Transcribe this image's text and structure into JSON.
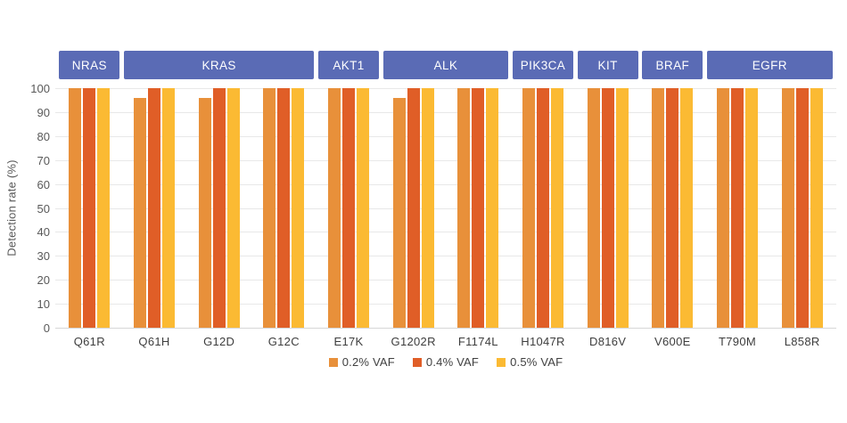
{
  "chart_data": {
    "type": "bar",
    "title": "",
    "xlabel": "",
    "ylabel": "Detection rate (%)",
    "ylim": [
      0,
      100
    ],
    "yticks": [
      0,
      10,
      20,
      30,
      40,
      50,
      60,
      70,
      80,
      90,
      100
    ],
    "grid": true,
    "legend_position": "bottom",
    "categories": [
      "Q61R",
      "Q61H",
      "G12D",
      "G12C",
      "E17K",
      "G1202R",
      "F1174L",
      "H1047R",
      "D816V",
      "V600E",
      "T790M",
      "L858R"
    ],
    "gene_groups": [
      {
        "label": "NRAS",
        "from": 0,
        "to": 0
      },
      {
        "label": "KRAS",
        "from": 1,
        "to": 3
      },
      {
        "label": "AKT1",
        "from": 4,
        "to": 4
      },
      {
        "label": "ALK",
        "from": 5,
        "to": 6
      },
      {
        "label": "PIK3CA",
        "from": 7,
        "to": 7
      },
      {
        "label": "KIT",
        "from": 8,
        "to": 8
      },
      {
        "label": "BRAF",
        "from": 9,
        "to": 9
      },
      {
        "label": "EGFR",
        "from": 10,
        "to": 11
      }
    ],
    "series": [
      {
        "name": "0.2% VAF",
        "color": "#E8903A",
        "values": [
          100,
          96,
          96,
          100,
          100,
          96,
          100,
          100,
          100,
          100,
          100,
          100
        ]
      },
      {
        "name": "0.4% VAF",
        "color": "#E05E27",
        "values": [
          100,
          100,
          100,
          100,
          100,
          100,
          100,
          100,
          100,
          100,
          100,
          100
        ]
      },
      {
        "name": "0.5% VAF",
        "color": "#FBBA33",
        "values": [
          100,
          100,
          100,
          100,
          100,
          100,
          100,
          100,
          100,
          100,
          100,
          100
        ]
      }
    ],
    "colors": {
      "gene_box_bg": "#5A6BB5",
      "gene_box_text": "#FFFFFF",
      "gridline": "#E8E8E8",
      "axis_line": "#D6D6D6",
      "tick_text": "#595959",
      "category_text": "#3D3D3D",
      "background": "#FFFFFF"
    }
  }
}
